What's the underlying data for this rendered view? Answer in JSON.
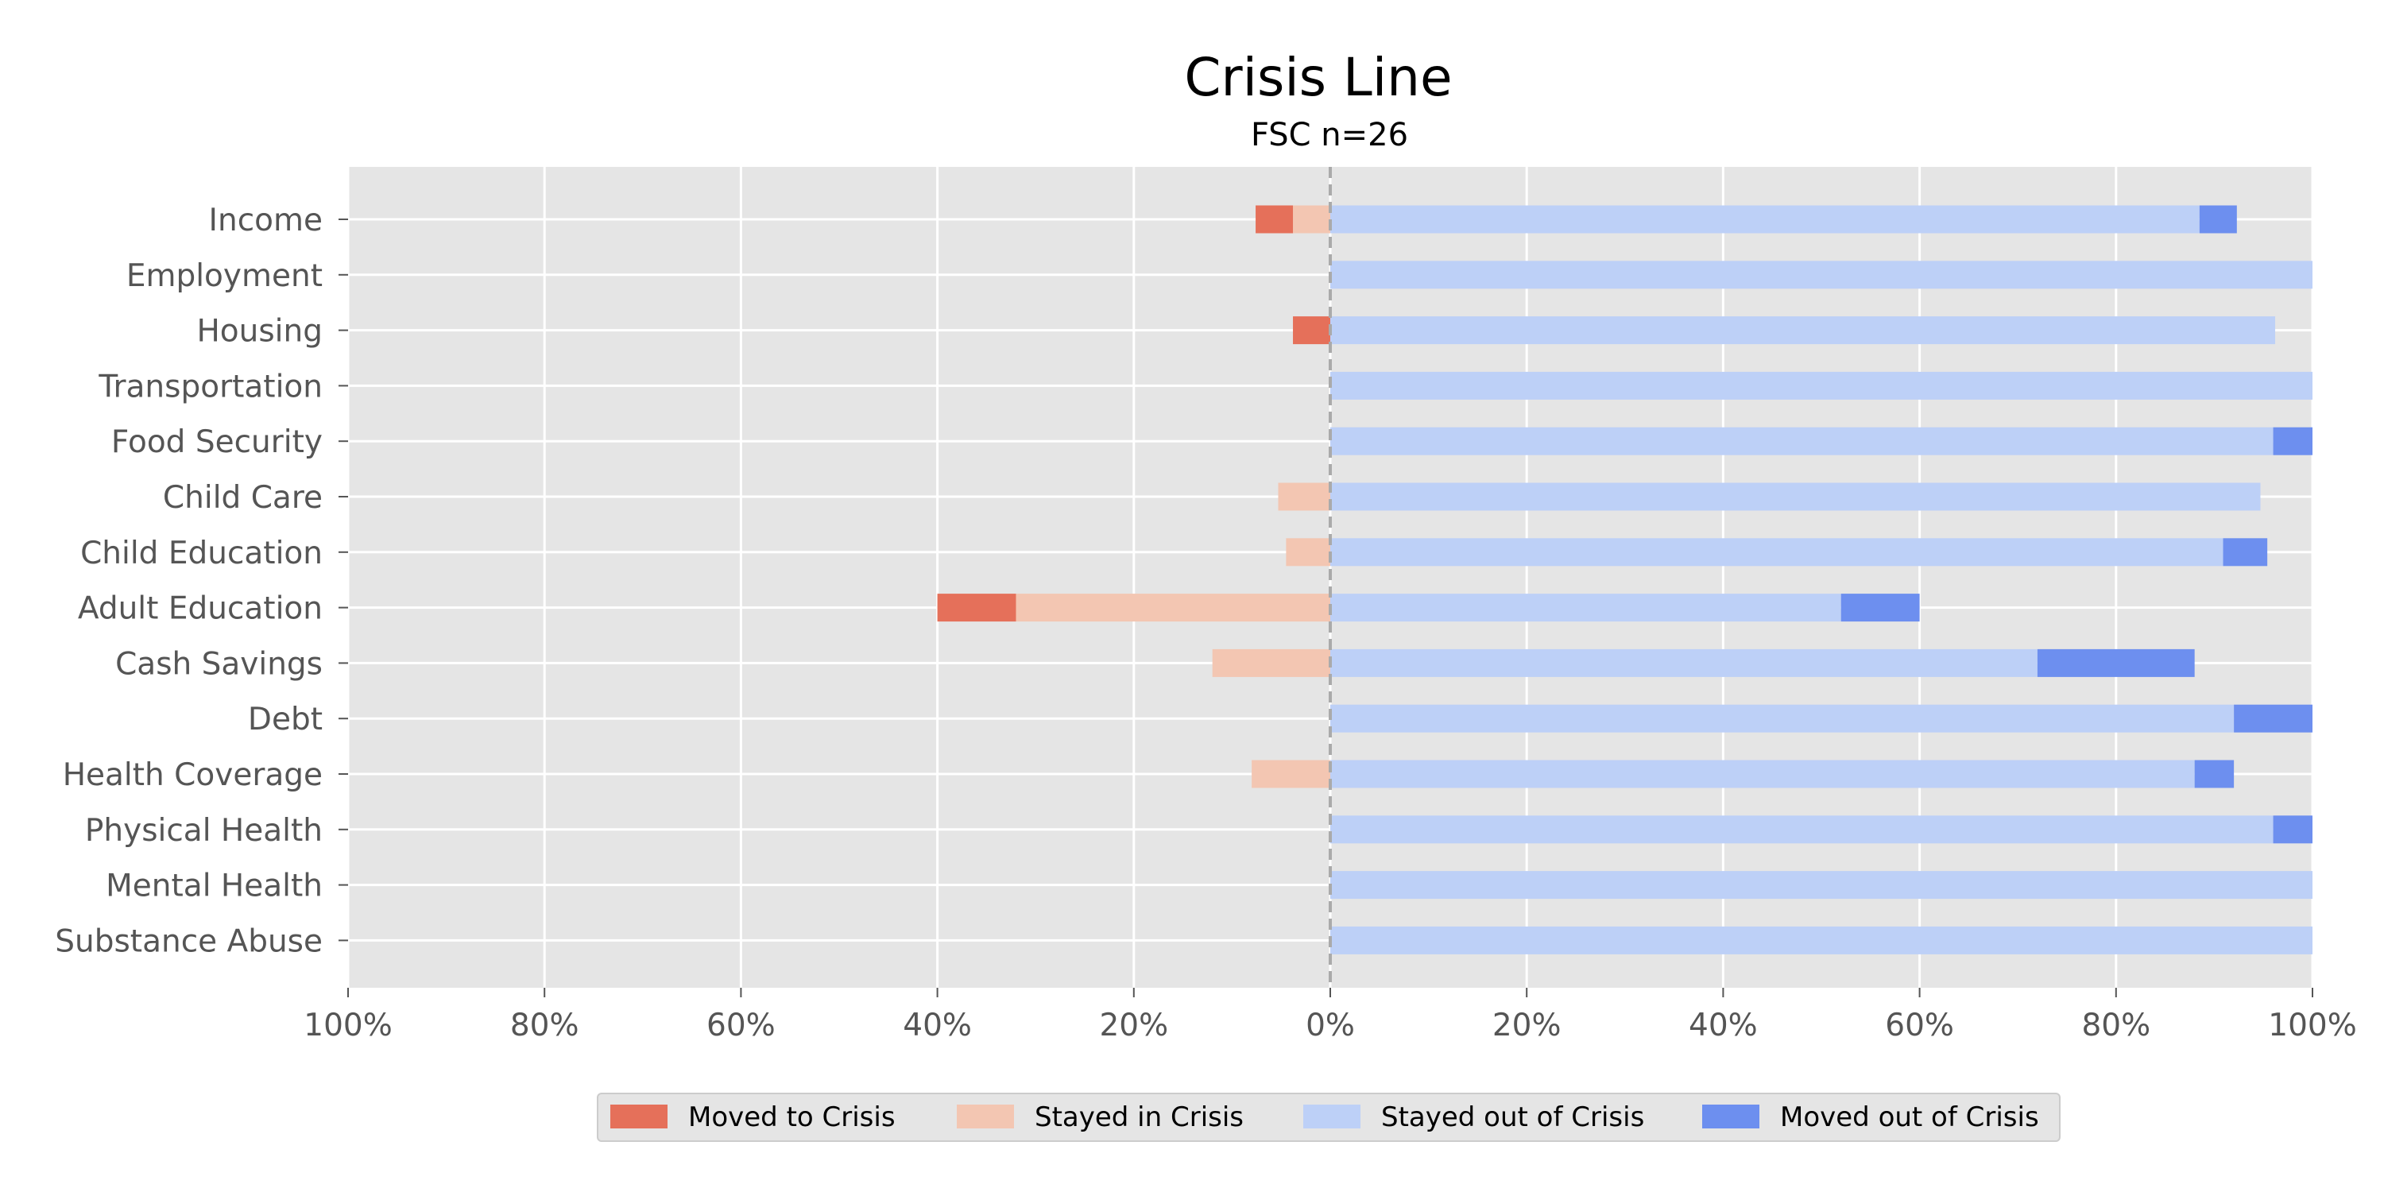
{
  "chart_data": {
    "type": "bar",
    "orientation": "horizontal",
    "stacked": "diverging",
    "title": "Crisis Line",
    "subtitle": "FSC n=26",
    "xlim": [
      -100,
      100
    ],
    "x_tick_values": [
      -100,
      -80,
      -60,
      -40,
      -20,
      0,
      20,
      40,
      60,
      80,
      100
    ],
    "x_tick_labels": [
      "100%",
      "80%",
      "60%",
      "40%",
      "20%",
      "0%",
      "20%",
      "40%",
      "60%",
      "80%",
      "100%"
    ],
    "grid": true,
    "legend_position": "bottom-center",
    "categories": [
      "Income",
      "Employment",
      "Housing",
      "Transportation",
      "Food Security",
      "Child Care",
      "Child Education",
      "Adult Education",
      "Cash Savings",
      "Debt",
      "Health Coverage",
      "Physical Health",
      "Mental Health",
      "Substance Abuse"
    ],
    "series": [
      {
        "name": "Moved to Crisis",
        "side": "left",
        "color": "#e5705a",
        "values": [
          3.8,
          0,
          3.8,
          0,
          0,
          0,
          0,
          8.0,
          0,
          0,
          0,
          0,
          0,
          0
        ]
      },
      {
        "name": "Stayed in Crisis",
        "side": "left",
        "color": "#f3c6b2",
        "values": [
          3.8,
          0,
          0,
          0,
          0,
          5.3,
          4.5,
          32.0,
          12.0,
          0,
          8.0,
          0,
          0,
          0
        ]
      },
      {
        "name": "Stayed out of Crisis",
        "side": "right",
        "color": "#bdd0f7",
        "values": [
          88.5,
          100,
          96.2,
          100,
          96.0,
          94.7,
          90.9,
          52.0,
          72.0,
          92.0,
          88.0,
          96.0,
          100,
          100
        ]
      },
      {
        "name": "Moved out of Crisis",
        "side": "right",
        "color": "#6d8fef",
        "values": [
          3.8,
          0,
          0,
          0,
          4.0,
          0,
          4.5,
          8.0,
          16.0,
          8.0,
          4.0,
          4.0,
          0,
          0
        ]
      }
    ]
  }
}
